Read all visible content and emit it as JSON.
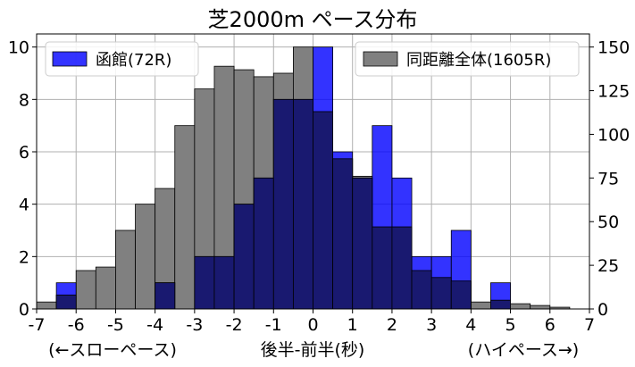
{
  "chart_data": {
    "type": "bar",
    "title": "芝2000m ペース分布",
    "xlabel": "後半-前半(秒)",
    "xlabel_left": "(←スローペース)",
    "xlabel_right": "(ハイペース→)",
    "xlim": [
      -7,
      7
    ],
    "ylim_left": [
      0,
      10.5
    ],
    "ylim_right": [
      0,
      157.5
    ],
    "grid": true,
    "bin_width": 0.5,
    "x_ticks": [
      "-7",
      "-6",
      "-5",
      "-4",
      "-3",
      "-2",
      "-1",
      "0",
      "1",
      "2",
      "3",
      "4",
      "5",
      "6",
      "7"
    ],
    "y_ticks_left": [
      "0",
      "2",
      "4",
      "6",
      "8",
      "10"
    ],
    "y_ticks_right": [
      "0",
      "25",
      "50",
      "75",
      "100",
      "125",
      "150"
    ],
    "series": [
      {
        "name": "函館(72R)",
        "axis": "left",
        "color": "#0000ff",
        "bins": [
          {
            "x0": -6.5,
            "value": 1
          },
          {
            "x0": -4.0,
            "value": 1
          },
          {
            "x0": -3.0,
            "value": 2
          },
          {
            "x0": -2.5,
            "value": 2
          },
          {
            "x0": -2.0,
            "value": 4
          },
          {
            "x0": -1.5,
            "value": 5
          },
          {
            "x0": -1.0,
            "value": 8
          },
          {
            "x0": -0.5,
            "value": 8
          },
          {
            "x0": 0.0,
            "value": 10
          },
          {
            "x0": 0.5,
            "value": 6
          },
          {
            "x0": 1.0,
            "value": 5
          },
          {
            "x0": 1.5,
            "value": 7
          },
          {
            "x0": 2.0,
            "value": 5
          },
          {
            "x0": 2.5,
            "value": 2
          },
          {
            "x0": 3.0,
            "value": 2
          },
          {
            "x0": 3.5,
            "value": 3
          },
          {
            "x0": 4.5,
            "value": 1
          }
        ]
      },
      {
        "name": "同距離全体(1605R)",
        "axis": "right",
        "color": "#808080",
        "bins": [
          {
            "x0": -7.0,
            "value": 4
          },
          {
            "x0": -6.5,
            "value": 8
          },
          {
            "x0": -6.0,
            "value": 22
          },
          {
            "x0": -5.5,
            "value": 24
          },
          {
            "x0": -5.0,
            "value": 45
          },
          {
            "x0": -4.5,
            "value": 60
          },
          {
            "x0": -4.0,
            "value": 69
          },
          {
            "x0": -3.5,
            "value": 105
          },
          {
            "x0": -3.0,
            "value": 126
          },
          {
            "x0": -2.5,
            "value": 139
          },
          {
            "x0": -2.0,
            "value": 137
          },
          {
            "x0": -1.5,
            "value": 133
          },
          {
            "x0": -1.0,
            "value": 135
          },
          {
            "x0": -0.5,
            "value": 150
          },
          {
            "x0": 0.0,
            "value": 113
          },
          {
            "x0": 0.5,
            "value": 86
          },
          {
            "x0": 1.0,
            "value": 76
          },
          {
            "x0": 1.5,
            "value": 47
          },
          {
            "x0": 2.0,
            "value": 47
          },
          {
            "x0": 2.5,
            "value": 22
          },
          {
            "x0": 3.0,
            "value": 18
          },
          {
            "x0": 3.5,
            "value": 16
          },
          {
            "x0": 4.0,
            "value": 4
          },
          {
            "x0": 4.5,
            "value": 5
          },
          {
            "x0": 5.0,
            "value": 3
          },
          {
            "x0": 5.5,
            "value": 2
          },
          {
            "x0": 6.0,
            "value": 1
          }
        ]
      }
    ],
    "overlap_color": "#191970",
    "legend_left_placement": "top-left",
    "legend_right_placement": "top-right"
  }
}
